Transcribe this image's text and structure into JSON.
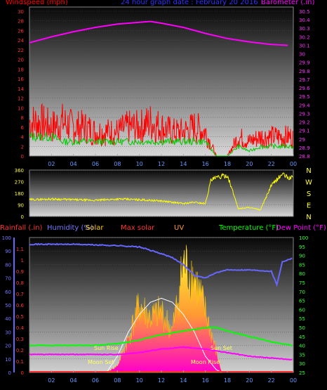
{
  "panel1": {
    "left_title": "Windspeed (mph)",
    "center_title": "24 hour graph date : February 20 2016",
    "right_title": "Barometer (.in)"
  },
  "panel3": {
    "labels": [
      "Rainfall (.in)",
      "Humidity (%)",
      "Solar",
      "Max solar",
      "UV",
      "Temperature (°F)",
      "Dew Point (°F)"
    ],
    "annotations": {
      "sun_rise": "Sun Rise",
      "sun_set": "Sun Set",
      "moon_set": "Moon Set",
      "moon_rise": "Moon Rise"
    }
  },
  "colors": {
    "wind": "#ff0000",
    "gust": "#00cc00",
    "barometer": "#ff00ff",
    "direction": "#ffff00",
    "humidity": "#6666ff",
    "temperature": "#00ff00",
    "dewpoint": "#ff00ff",
    "solar": "#ffcc00",
    "maxsolar": "#ffffff"
  },
  "chart_data": [
    {
      "type": "line",
      "name": "wind-barometer",
      "x_tick_labels": [
        "02",
        "04",
        "06",
        "08",
        "10",
        "12",
        "14",
        "16",
        "18",
        "20",
        "22",
        "00"
      ],
      "left_axis": {
        "ylim": [
          0,
          30
        ],
        "ticks": [
          0,
          2,
          4,
          6,
          8,
          10,
          12,
          14,
          16,
          18,
          20,
          22,
          24,
          26,
          28,
          30
        ]
      },
      "right_axis": {
        "ylim": [
          28.8,
          30.5
        ],
        "ticks": [
          "28.8",
          "28.9",
          "29",
          "29.1",
          "29.2",
          "29.3",
          "29.4",
          "29.5",
          "29.6",
          "29.7",
          "29.8",
          "29.9",
          "30",
          "30.1",
          "30.2",
          "30.3",
          "30.4",
          "30.5"
        ]
      },
      "series": [
        {
          "name": "Windspeed",
          "axis": "left",
          "x": [
            0,
            1,
            2,
            3,
            4,
            5,
            6,
            7,
            8,
            9,
            10,
            11,
            12,
            13,
            14,
            15,
            16,
            17,
            18,
            19,
            20,
            21,
            22,
            23,
            24
          ],
          "y": [
            7,
            7,
            6,
            7,
            6,
            6,
            5,
            5,
            5,
            6,
            6,
            7,
            6,
            5,
            5,
            6,
            5,
            0,
            0,
            4,
            3,
            4,
            4,
            4,
            4
          ]
        },
        {
          "name": "Gust",
          "axis": "left",
          "x": [
            0,
            1,
            2,
            3,
            4,
            5,
            6,
            7,
            8,
            9,
            10,
            11,
            12,
            13,
            14,
            15,
            16,
            17,
            18,
            19,
            20,
            21,
            22,
            23,
            24
          ],
          "y": [
            4,
            4,
            4,
            3,
            3,
            3,
            3,
            3,
            3,
            3,
            3,
            3,
            3,
            3,
            3,
            3,
            3,
            0,
            0,
            2,
            1,
            2,
            2,
            2,
            2
          ]
        },
        {
          "name": "Barometer",
          "axis": "right",
          "x": [
            0,
            2,
            4,
            6,
            8,
            10,
            11,
            12,
            14,
            16,
            18,
            20,
            22,
            23.5
          ],
          "y": [
            30.13,
            30.2,
            30.26,
            30.31,
            30.35,
            30.37,
            30.38,
            30.36,
            30.31,
            30.24,
            30.18,
            30.14,
            30.11,
            30.1
          ]
        }
      ]
    },
    {
      "type": "line",
      "name": "wind-direction",
      "ylim": [
        0,
        360
      ],
      "left_ticks": [
        0,
        90,
        180,
        270,
        360
      ],
      "right_labels": [
        "N",
        "W",
        "S",
        "E",
        "N"
      ],
      "series": [
        {
          "name": "Direction",
          "x": [
            0,
            2,
            4,
            6,
            8,
            10,
            12,
            14,
            15,
            16,
            16.5,
            17,
            18,
            19,
            20,
            21,
            22,
            23,
            23.5,
            24
          ],
          "y": [
            130,
            135,
            130,
            125,
            135,
            130,
            120,
            100,
            110,
            100,
            280,
            300,
            320,
            60,
            70,
            50,
            240,
            330,
            300,
            300
          ]
        }
      ]
    },
    {
      "type": "area",
      "name": "rain-humidity-solar-temp",
      "left_axis_rain": {
        "ylim": [
          0,
          1.2
        ],
        "ticks": [
          "0",
          "0.1",
          "0.2",
          "0.3",
          "0.4",
          "0.5",
          "0.6",
          "0.7",
          "0.8",
          "0.9",
          "1",
          "1.1"
        ]
      },
      "left_axis_humidity": {
        "ylim": [
          0,
          100
        ],
        "ticks": [
          0,
          10,
          20,
          30,
          40,
          50,
          60,
          70,
          80,
          90,
          100
        ]
      },
      "right_axis_temp": {
        "ylim": [
          25,
          100
        ],
        "ticks": [
          25,
          30,
          35,
          40,
          45,
          50,
          55,
          60,
          65,
          70,
          75,
          80,
          85,
          90,
          95,
          100
        ]
      },
      "series": [
        {
          "name": "Humidity",
          "x": [
            0,
            4,
            8,
            10,
            12,
            13,
            14,
            15,
            16,
            17,
            18,
            20,
            22,
            22.5,
            23,
            24
          ],
          "y": [
            95,
            95,
            94,
            93,
            88,
            85,
            80,
            72,
            70,
            74,
            76,
            76,
            75,
            65,
            82,
            85
          ]
        },
        {
          "name": "Temperature",
          "x": [
            0,
            6,
            8,
            10,
            12,
            14,
            16,
            17,
            18,
            20,
            22,
            24
          ],
          "y": [
            40,
            40,
            41,
            43,
            46,
            48,
            50,
            50,
            48,
            45,
            42,
            40
          ]
        },
        {
          "name": "Dew Point",
          "x": [
            0,
            6,
            8,
            10,
            12,
            14,
            16,
            18,
            20,
            22,
            24
          ],
          "y": [
            35,
            35,
            35,
            36,
            38,
            39,
            38,
            36,
            34,
            33,
            32
          ]
        },
        {
          "name": "Solar",
          "x": [
            7,
            8,
            9,
            10,
            11,
            12,
            13,
            14,
            15,
            16,
            17,
            17.5
          ],
          "y": [
            0,
            5,
            25,
            50,
            40,
            45,
            30,
            80,
            70,
            45,
            15,
            0
          ]
        },
        {
          "name": "Max solar",
          "x": [
            7,
            8,
            9,
            10,
            11,
            12,
            13,
            14,
            15,
            16,
            17,
            17.5
          ],
          "y": [
            0,
            12,
            30,
            43,
            52,
            55,
            52,
            43,
            30,
            12,
            2,
            0
          ]
        }
      ]
    }
  ]
}
